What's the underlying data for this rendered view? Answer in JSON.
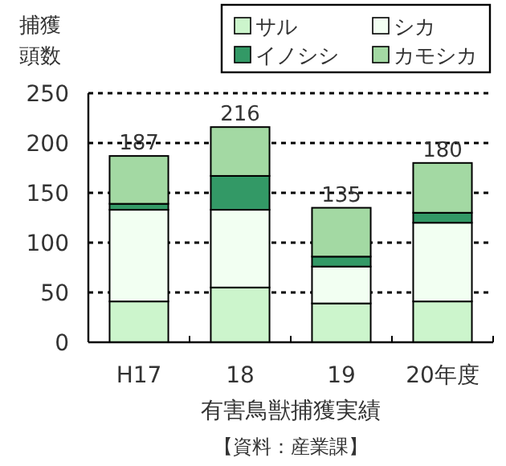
{
  "chart_data": {
    "type": "bar",
    "stacked": true,
    "title": "有害鳥獣捕獲実績",
    "ylabel": "捕獲頭数",
    "annotations": [
      "【資料：産業課】"
    ],
    "categories": [
      "H17",
      "18",
      "19",
      "20年度"
    ],
    "series": [
      {
        "name": "サル",
        "color": "#ccf5cc",
        "values": [
          41,
          55,
          39,
          41
        ]
      },
      {
        "name": "シカ",
        "color": "#f2fff2",
        "values": [
          92,
          78,
          37,
          79
        ]
      },
      {
        "name": "イノシシ",
        "color": "#339966",
        "values": [
          6,
          34,
          10,
          10
        ]
      },
      {
        "name": "カモシカ",
        "color": "#a3d9a3",
        "values": [
          48,
          49,
          49,
          50
        ]
      }
    ],
    "totals": [
      "187",
      "216",
      "135",
      "180"
    ],
    "ylim": [
      0,
      250
    ],
    "yticks": [
      0,
      50,
      100,
      150,
      200,
      250
    ],
    "grid": "y",
    "legend": "top right"
  }
}
